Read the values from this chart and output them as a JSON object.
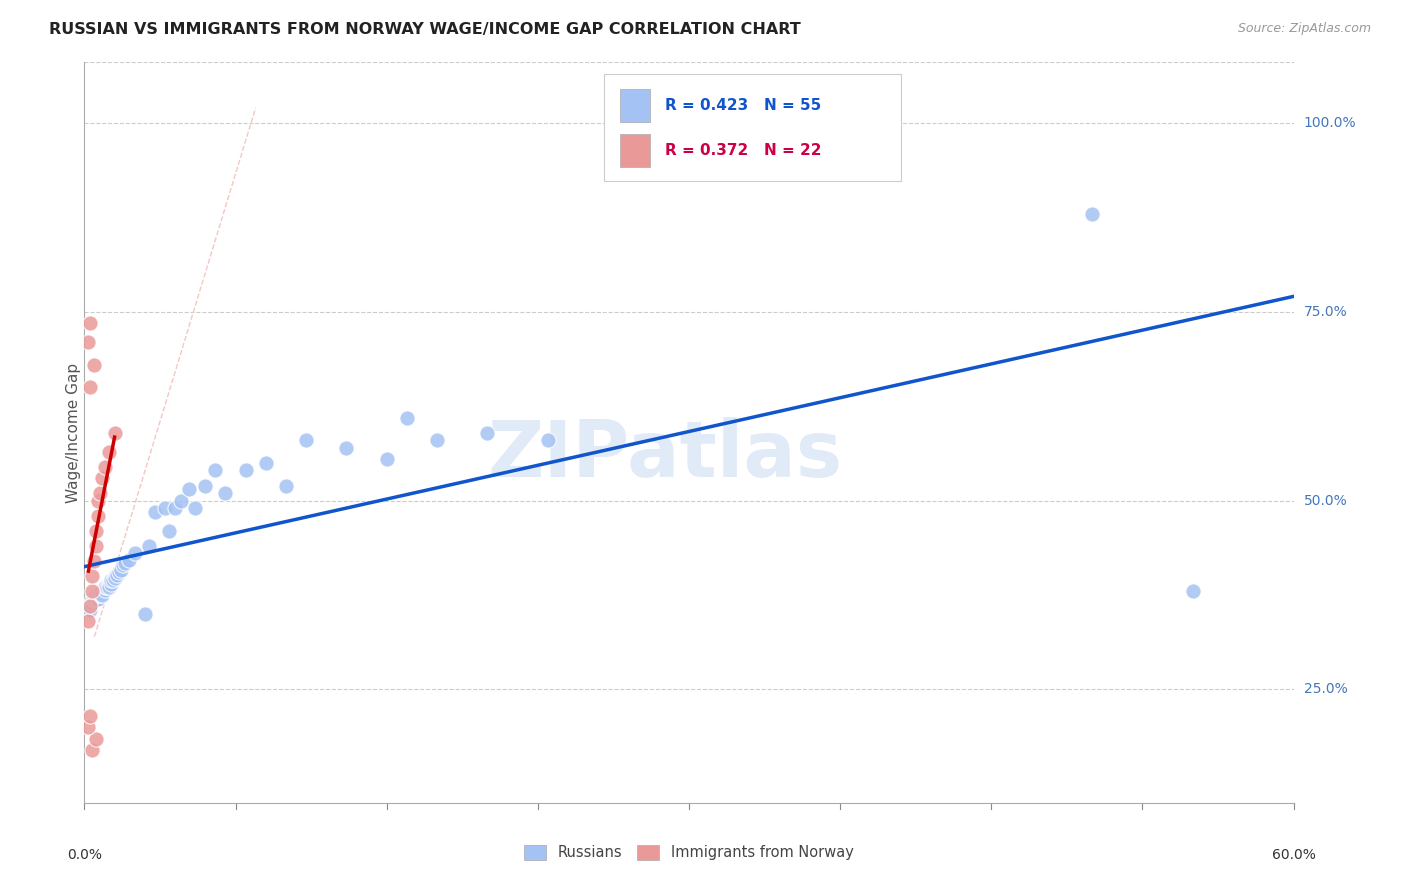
{
  "title": "RUSSIAN VS IMMIGRANTS FROM NORWAY WAGE/INCOME GAP CORRELATION CHART",
  "source": "Source: ZipAtlas.com",
  "ylabel": "Wage/Income Gap",
  "watermark": "ZIPatlas",
  "legend_r_russian": "R = 0.423",
  "legend_n_russian": "N = 55",
  "legend_r_norway": "R = 0.372",
  "legend_n_norway": "N = 22",
  "russian_color": "#a4c2f4",
  "norway_color": "#ea9999",
  "russian_line_color": "#1155cc",
  "norway_line_color": "#cc0000",
  "diagonal_color": "#f4c7c3",
  "xlim": [
    0.0,
    0.6
  ],
  "ylim": [
    0.1,
    1.08
  ],
  "right_ytick_vals": [
    1.0,
    0.75,
    0.5,
    0.25
  ],
  "right_ytick_labels": [
    "100.0%",
    "75.0%",
    "50.0%",
    "25.0%"
  ],
  "russian_points": [
    [
      0.002,
      0.36
    ],
    [
      0.003,
      0.355
    ],
    [
      0.004,
      0.365
    ],
    [
      0.004,
      0.37
    ],
    [
      0.005,
      0.368
    ],
    [
      0.005,
      0.372
    ],
    [
      0.006,
      0.37
    ],
    [
      0.006,
      0.375
    ],
    [
      0.007,
      0.37
    ],
    [
      0.007,
      0.375
    ],
    [
      0.008,
      0.375
    ],
    [
      0.008,
      0.378
    ],
    [
      0.009,
      0.38
    ],
    [
      0.009,
      0.375
    ],
    [
      0.01,
      0.382
    ],
    [
      0.01,
      0.385
    ],
    [
      0.011,
      0.385
    ],
    [
      0.012,
      0.388
    ],
    [
      0.012,
      0.385
    ],
    [
      0.013,
      0.39
    ],
    [
      0.013,
      0.395
    ],
    [
      0.014,
      0.395
    ],
    [
      0.015,
      0.4
    ],
    [
      0.015,
      0.398
    ],
    [
      0.016,
      0.402
    ],
    [
      0.017,
      0.405
    ],
    [
      0.018,
      0.408
    ],
    [
      0.019,
      0.415
    ],
    [
      0.02,
      0.418
    ],
    [
      0.022,
      0.422
    ],
    [
      0.025,
      0.43
    ],
    [
      0.03,
      0.35
    ],
    [
      0.032,
      0.44
    ],
    [
      0.035,
      0.485
    ],
    [
      0.04,
      0.49
    ],
    [
      0.042,
      0.46
    ],
    [
      0.045,
      0.49
    ],
    [
      0.048,
      0.5
    ],
    [
      0.052,
      0.515
    ],
    [
      0.055,
      0.49
    ],
    [
      0.06,
      0.52
    ],
    [
      0.065,
      0.54
    ],
    [
      0.07,
      0.51
    ],
    [
      0.08,
      0.54
    ],
    [
      0.09,
      0.55
    ],
    [
      0.1,
      0.52
    ],
    [
      0.11,
      0.58
    ],
    [
      0.13,
      0.57
    ],
    [
      0.15,
      0.555
    ],
    [
      0.16,
      0.61
    ],
    [
      0.175,
      0.58
    ],
    [
      0.2,
      0.59
    ],
    [
      0.23,
      0.58
    ],
    [
      0.5,
      0.88
    ],
    [
      0.55,
      0.38
    ]
  ],
  "norway_points": [
    [
      0.002,
      0.34
    ],
    [
      0.003,
      0.36
    ],
    [
      0.004,
      0.38
    ],
    [
      0.004,
      0.4
    ],
    [
      0.005,
      0.42
    ],
    [
      0.006,
      0.44
    ],
    [
      0.006,
      0.46
    ],
    [
      0.007,
      0.48
    ],
    [
      0.007,
      0.5
    ],
    [
      0.008,
      0.51
    ],
    [
      0.009,
      0.53
    ],
    [
      0.01,
      0.545
    ],
    [
      0.012,
      0.565
    ],
    [
      0.015,
      0.59
    ],
    [
      0.003,
      0.65
    ],
    [
      0.005,
      0.68
    ],
    [
      0.002,
      0.71
    ],
    [
      0.003,
      0.735
    ],
    [
      0.004,
      0.17
    ],
    [
      0.006,
      0.185
    ],
    [
      0.002,
      0.2
    ],
    [
      0.003,
      0.215
    ]
  ]
}
